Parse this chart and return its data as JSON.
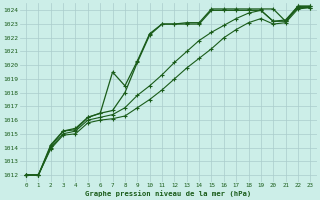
{
  "bg_color": "#cceee8",
  "grid_color": "#aacccc",
  "line_color": "#1a5c1a",
  "marker": "+",
  "title": "Graphe pression niveau de la mer (hPa)",
  "xlim": [
    -0.5,
    23.5
  ],
  "ylim": [
    1011.5,
    1024.5
  ],
  "xticks": [
    0,
    1,
    2,
    3,
    4,
    5,
    6,
    7,
    8,
    9,
    10,
    11,
    12,
    13,
    14,
    15,
    16,
    17,
    18,
    19,
    20,
    21,
    22,
    23
  ],
  "yticks": [
    1012,
    1013,
    1014,
    1015,
    1016,
    1017,
    1018,
    1019,
    1020,
    1021,
    1022,
    1023,
    1024
  ],
  "series": [
    [
      1012.0,
      1012.0,
      1014.2,
      1015.2,
      1015.3,
      1016.2,
      1016.5,
      1019.5,
      1018.5,
      1020.3,
      1022.3,
      1023.0,
      1023.0,
      1023.1,
      1023.1,
      1024.1,
      1024.1,
      1024.1,
      1024.1,
      1024.1,
      1024.1,
      1023.2,
      1024.3,
      1024.3
    ],
    [
      1012.0,
      1012.0,
      1014.1,
      1015.2,
      1015.4,
      1016.2,
      1016.5,
      1016.7,
      1018.0,
      1020.2,
      1022.2,
      1023.0,
      1023.0,
      1023.0,
      1023.0,
      1024.0,
      1024.0,
      1024.0,
      1024.0,
      1024.0,
      1023.2,
      1023.3,
      1024.3,
      1024.3
    ],
    [
      1012.0,
      1012.0,
      1014.0,
      1015.0,
      1015.2,
      1016.0,
      1016.2,
      1016.4,
      1016.9,
      1017.8,
      1018.5,
      1019.3,
      1020.2,
      1021.0,
      1021.8,
      1022.4,
      1022.9,
      1023.4,
      1023.8,
      1024.0,
      1023.2,
      1023.2,
      1024.2,
      1024.2
    ],
    [
      1012.0,
      1012.0,
      1013.9,
      1014.9,
      1015.0,
      1015.8,
      1016.0,
      1016.1,
      1016.3,
      1016.9,
      1017.5,
      1018.2,
      1019.0,
      1019.8,
      1020.5,
      1021.2,
      1022.0,
      1022.6,
      1023.1,
      1023.4,
      1023.0,
      1023.1,
      1024.1,
      1024.2
    ]
  ]
}
